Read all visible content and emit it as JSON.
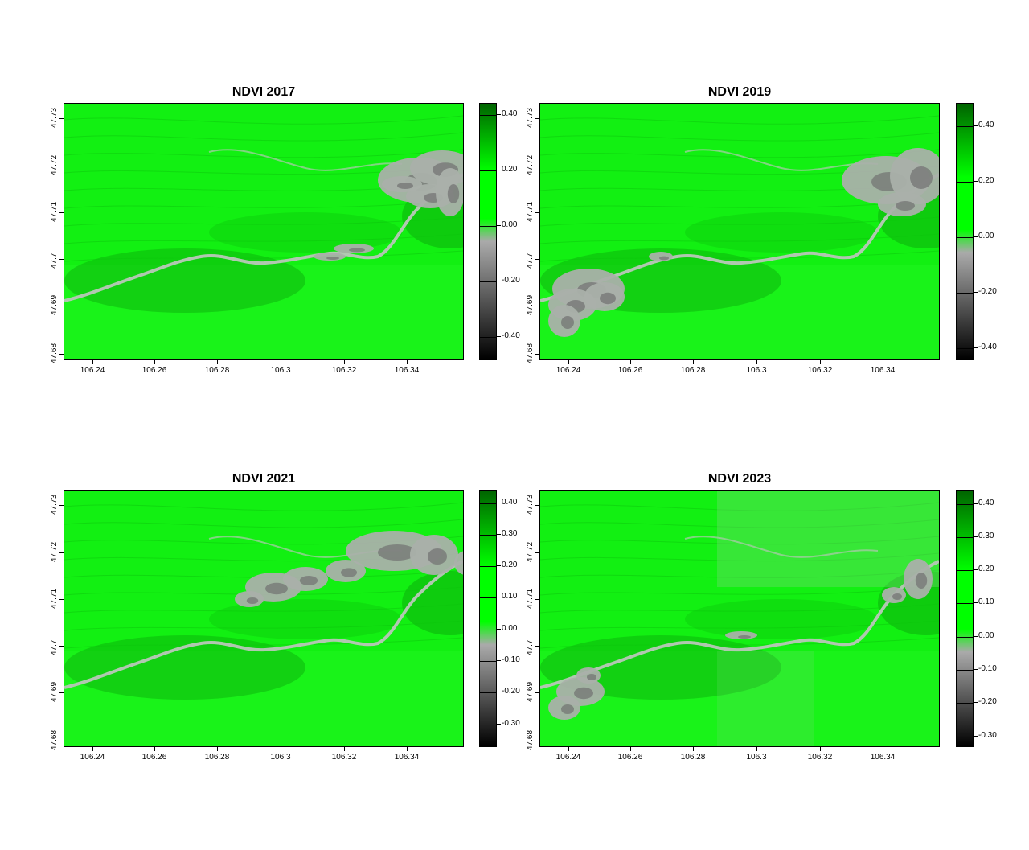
{
  "figure": {
    "panels": [
      {
        "title": "NDVI 2017",
        "x_ticks": [
          "106.24",
          "106.26",
          "106.28",
          "106.3",
          "106.32",
          "106.34"
        ],
        "y_ticks": [
          "47.68",
          "47.69",
          "47.7",
          "47.71",
          "47.72",
          "47.73"
        ],
        "legend_ticks": [
          "0.40",
          "0.20",
          "0.00",
          "-0.20",
          "-0.40"
        ],
        "legend_range": [
          -0.48,
          0.44
        ],
        "flood_extent": "east"
      },
      {
        "title": "NDVI 2019",
        "x_ticks": [
          "106.24",
          "106.26",
          "106.28",
          "106.3",
          "106.32",
          "106.34"
        ],
        "y_ticks": [
          "47.68",
          "47.69",
          "47.7",
          "47.71",
          "47.72",
          "47.73"
        ],
        "legend_ticks": [
          "0.40",
          "0.20",
          "0.00",
          "-0.20",
          "-0.40"
        ],
        "legend_range": [
          -0.44,
          0.48
        ],
        "flood_extent": "east-west"
      },
      {
        "title": "NDVI 2021",
        "x_ticks": [
          "106.24",
          "106.26",
          "106.28",
          "106.3",
          "106.32",
          "106.34"
        ],
        "y_ticks": [
          "47.68",
          "47.69",
          "47.7",
          "47.71",
          "47.72",
          "47.73"
        ],
        "legend_ticks": [
          "0.40",
          "0.30",
          "0.20",
          "0.10",
          "0.00",
          "-0.10",
          "-0.20",
          "-0.30"
        ],
        "legend_range": [
          -0.37,
          0.44
        ],
        "flood_extent": "center-east"
      },
      {
        "title": "NDVI 2023",
        "x_ticks": [
          "106.24",
          "106.26",
          "106.28",
          "106.3",
          "106.32",
          "106.34"
        ],
        "y_ticks": [
          "47.68",
          "47.69",
          "47.7",
          "47.71",
          "47.72",
          "47.73"
        ],
        "legend_ticks": [
          "0.40",
          "0.30",
          "0.20",
          "0.10",
          "0.00",
          "-0.10",
          "-0.20",
          "-0.30"
        ],
        "legend_range": [
          -0.33,
          0.44
        ],
        "flood_extent": "west"
      }
    ],
    "colors": {
      "high": "#006400",
      "mid": "#00ff00",
      "zero": "#aaaaaa",
      "low": "#000000",
      "river": "#b0c8b0"
    }
  }
}
